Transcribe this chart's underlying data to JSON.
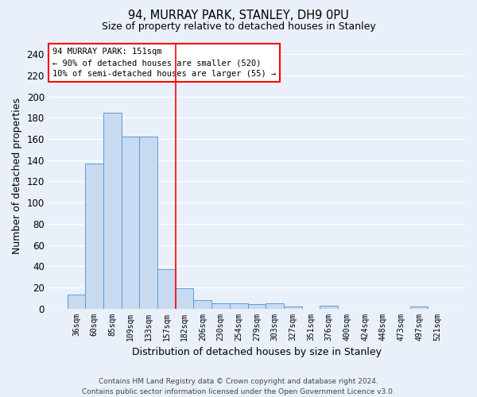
{
  "title": "94, MURRAY PARK, STANLEY, DH9 0PU",
  "subtitle": "Size of property relative to detached houses in Stanley",
  "xlabel": "Distribution of detached houses by size in Stanley",
  "ylabel": "Number of detached properties",
  "categories": [
    "36sqm",
    "60sqm",
    "85sqm",
    "109sqm",
    "133sqm",
    "157sqm",
    "182sqm",
    "206sqm",
    "230sqm",
    "254sqm",
    "279sqm",
    "303sqm",
    "327sqm",
    "351sqm",
    "376sqm",
    "400sqm",
    "424sqm",
    "448sqm",
    "473sqm",
    "497sqm",
    "521sqm"
  ],
  "values": [
    13,
    137,
    185,
    162,
    162,
    37,
    19,
    8,
    5,
    5,
    4,
    5,
    2,
    0,
    3,
    0,
    0,
    0,
    0,
    2,
    0
  ],
  "bar_color": "#c8daf0",
  "bar_edge_color": "#5b9bd5",
  "background_color": "#eaf0fa",
  "grid_color": "#ffffff",
  "vline_x": 5.5,
  "vline_color": "red",
  "annotation_title": "94 MURRAY PARK: 151sqm",
  "annotation_line1": "← 90% of detached houses are smaller (520)",
  "annotation_line2": "10% of semi-detached houses are larger (55) →",
  "annotation_box_color": "white",
  "annotation_box_edge_color": "red",
  "ylim": [
    0,
    250
  ],
  "yticks": [
    0,
    20,
    40,
    60,
    80,
    100,
    120,
    140,
    160,
    180,
    200,
    220,
    240
  ],
  "footer_line1": "Contains HM Land Registry data © Crown copyright and database right 2024.",
  "footer_line2": "Contains public sector information licensed under the Open Government Licence v3.0.",
  "figsize": [
    6.0,
    5.0
  ],
  "dpi": 100
}
